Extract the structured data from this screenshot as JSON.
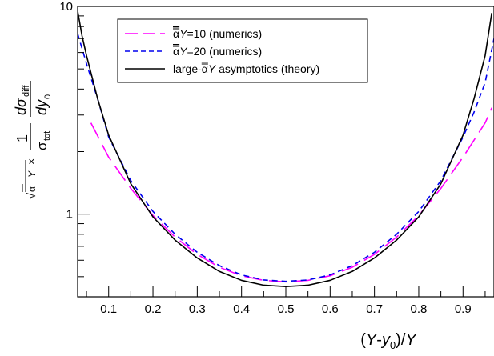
{
  "chart_data": {
    "type": "line",
    "xlabel": "(Y-y0)/Y",
    "ylabel": "√ᾱY × (1/σtot) dσdiff/dy0",
    "xlim": [
      0.03,
      0.97
    ],
    "ylim": [
      0.4,
      10
    ],
    "yscale": "log",
    "grid": false,
    "legend_position": "top-center",
    "x_ticks": [
      "0.1",
      "0.2",
      "0.3",
      "0.4",
      "0.5",
      "0.6",
      "0.7",
      "0.8",
      "0.9"
    ],
    "y_ticks": [
      "1",
      "10"
    ],
    "series": [
      {
        "name": "ᾱY=10 (numerics)",
        "legend": {
          "prefix": "",
          "bar": "α",
          "mid": "Y",
          "suffix": "=10 (numerics)"
        },
        "color": "#ff00ff",
        "dash": "long-dash",
        "x": [
          0.06,
          0.1,
          0.15,
          0.2,
          0.25,
          0.3,
          0.35,
          0.4,
          0.45,
          0.5,
          0.55,
          0.6,
          0.65,
          0.7,
          0.75,
          0.8,
          0.85,
          0.9,
          0.95,
          0.965
        ],
        "y": [
          2.75,
          1.88,
          1.33,
          0.985,
          0.775,
          0.64,
          0.555,
          0.505,
          0.48,
          0.472,
          0.48,
          0.505,
          0.555,
          0.64,
          0.775,
          0.985,
          1.33,
          1.88,
          2.75,
          3.25
        ]
      },
      {
        "name": "ᾱY=20 (numerics)",
        "legend": {
          "prefix": "",
          "bar": "α",
          "mid": "Y",
          "suffix": "=20 (numerics)"
        },
        "color": "#0000ee",
        "dash": "short-dash",
        "x": [
          0.03,
          0.05,
          0.075,
          0.1,
          0.15,
          0.2,
          0.25,
          0.3,
          0.35,
          0.4,
          0.45,
          0.5,
          0.55,
          0.6,
          0.65,
          0.7,
          0.75,
          0.8,
          0.85,
          0.9,
          0.925,
          0.95,
          0.97
        ],
        "y": [
          7.4,
          5.3,
          3.6,
          2.35,
          1.45,
          1.03,
          0.8,
          0.655,
          0.565,
          0.51,
          0.482,
          0.475,
          0.482,
          0.51,
          0.565,
          0.655,
          0.8,
          1.03,
          1.45,
          2.35,
          3.1,
          4.3,
          7.0
        ]
      },
      {
        "name": "large-ᾱY asymptotics (theory)",
        "legend": {
          "prefix": "large-",
          "bar": "α",
          "mid": "Y",
          "suffix": " asymptotics (theory)"
        },
        "color": "#000000",
        "dash": "solid",
        "x": [
          0.03,
          0.04,
          0.05,
          0.075,
          0.1,
          0.15,
          0.2,
          0.25,
          0.3,
          0.35,
          0.4,
          0.45,
          0.5,
          0.55,
          0.6,
          0.65,
          0.7,
          0.75,
          0.8,
          0.85,
          0.9,
          0.925,
          0.95,
          0.965
        ],
        "y": [
          9.5,
          7.2,
          5.8,
          3.6,
          2.4,
          1.4,
          0.97,
          0.75,
          0.615,
          0.53,
          0.48,
          0.455,
          0.448,
          0.455,
          0.48,
          0.53,
          0.615,
          0.75,
          0.97,
          1.4,
          2.4,
          3.6,
          5.8,
          9.3
        ]
      }
    ]
  }
}
